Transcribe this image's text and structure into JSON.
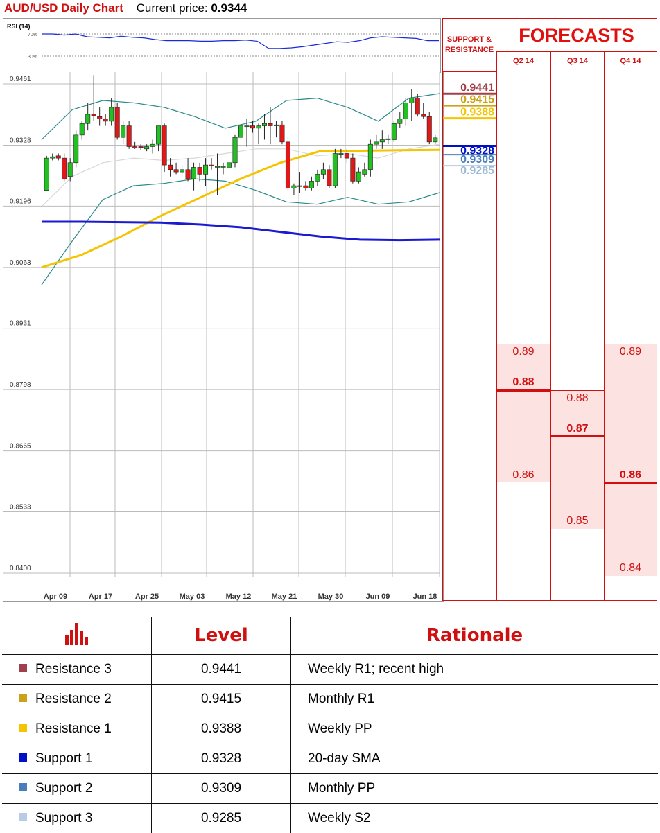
{
  "header": {
    "title": "AUD/USD Daily Chart",
    "price_label": "Current price:",
    "price_value": "0.9344"
  },
  "rsi_panel": {
    "label": "RSI (14)",
    "levels": [
      "70%",
      "30%"
    ]
  },
  "support_resistance_header": {
    "line1": "SUPPORT &",
    "line2": "RESISTANCE"
  },
  "forecasts": {
    "title": "FORECASTS",
    "quarters": [
      {
        "label": "Q2 14",
        "high": "0.89",
        "mid": "0.88",
        "low": "0.86"
      },
      {
        "label": "Q3 14",
        "high": "0.88",
        "mid": "0.87",
        "low": "0.85"
      },
      {
        "label": "Q4 14",
        "high": "0.89",
        "mid": "0.86",
        "low": "0.84"
      }
    ]
  },
  "chart_data": {
    "type": "candlestick",
    "title": "AUD/USD Daily Chart",
    "x_tick_labels": [
      "Apr 09",
      "Apr 17",
      "Apr 25",
      "May 03",
      "May 12",
      "May 21",
      "May 30",
      "Jun 09",
      "Jun 18"
    ],
    "y_tick_labels": [
      "0.9461",
      "0.9328",
      "0.9196",
      "0.9063",
      "0.8931",
      "0.8798",
      "0.8665",
      "0.8533",
      "0.8400"
    ],
    "ylim": [
      0.84,
      0.9461
    ],
    "grid": true,
    "overlays": [
      "Bollinger Bands",
      "yellow moving average",
      "blue moving average"
    ],
    "ohlc": [
      [
        0.923,
        0.9305,
        0.923,
        0.93
      ],
      [
        0.93,
        0.931,
        0.9295,
        0.9303
      ],
      [
        0.9305,
        0.931,
        0.9295,
        0.93
      ],
      [
        0.93,
        0.931,
        0.925,
        0.9255
      ],
      [
        0.926,
        0.93,
        0.925,
        0.929
      ],
      [
        0.929,
        0.936,
        0.928,
        0.935
      ],
      [
        0.935,
        0.938,
        0.934,
        0.9375
      ],
      [
        0.9375,
        0.942,
        0.936,
        0.9395
      ],
      [
        0.9395,
        0.948,
        0.938,
        0.9392
      ],
      [
        0.939,
        0.941,
        0.937,
        0.9385
      ],
      [
        0.9385,
        0.9395,
        0.937,
        0.938
      ],
      [
        0.938,
        0.943,
        0.937,
        0.941
      ],
      [
        0.941,
        0.942,
        0.934,
        0.9345
      ],
      [
        0.9345,
        0.938,
        0.933,
        0.937
      ],
      [
        0.937,
        0.938,
        0.932,
        0.9325
      ],
      [
        0.9325,
        0.9335,
        0.932,
        0.9322
      ],
      [
        0.9325,
        0.933,
        0.9318,
        0.9323
      ],
      [
        0.932,
        0.933,
        0.9315,
        0.9325
      ],
      [
        0.9325,
        0.934,
        0.931,
        0.933
      ],
      [
        0.933,
        0.937,
        0.9315,
        0.937
      ],
      [
        0.937,
        0.9375,
        0.927,
        0.9285
      ],
      [
        0.9285,
        0.93,
        0.926,
        0.9275
      ],
      [
        0.9275,
        0.929,
        0.9265,
        0.927
      ],
      [
        0.927,
        0.9285,
        0.926,
        0.9275
      ],
      [
        0.9275,
        0.93,
        0.925,
        0.9255
      ],
      [
        0.9255,
        0.929,
        0.923,
        0.928
      ],
      [
        0.928,
        0.929,
        0.925,
        0.9265
      ],
      [
        0.9265,
        0.93,
        0.924,
        0.9285
      ],
      [
        0.9285,
        0.93,
        0.9275,
        0.9283
      ],
      [
        0.928,
        0.931,
        0.922,
        0.9282
      ],
      [
        0.928,
        0.929,
        0.9265,
        0.9282
      ],
      [
        0.928,
        0.93,
        0.927,
        0.929
      ],
      [
        0.929,
        0.935,
        0.928,
        0.9345
      ],
      [
        0.9345,
        0.938,
        0.933,
        0.937
      ],
      [
        0.937,
        0.9385,
        0.9325,
        0.937
      ],
      [
        0.937,
        0.938,
        0.9355,
        0.9365
      ],
      [
        0.9365,
        0.9375,
        0.933,
        0.937
      ],
      [
        0.937,
        0.9395,
        0.934,
        0.9375
      ],
      [
        0.9375,
        0.941,
        0.933,
        0.937
      ],
      [
        0.937,
        0.938,
        0.9345,
        0.9372
      ],
      [
        0.9372,
        0.938,
        0.933,
        0.9335
      ],
      [
        0.9335,
        0.9345,
        0.923,
        0.9235
      ],
      [
        0.9235,
        0.9245,
        0.922,
        0.924
      ],
      [
        0.924,
        0.927,
        0.9225,
        0.924
      ],
      [
        0.924,
        0.925,
        0.923,
        0.9235
      ],
      [
        0.9235,
        0.926,
        0.923,
        0.925
      ],
      [
        0.925,
        0.9275,
        0.924,
        0.9265
      ],
      [
        0.9265,
        0.929,
        0.9255,
        0.9275
      ],
      [
        0.9275,
        0.9285,
        0.9235,
        0.924
      ],
      [
        0.924,
        0.932,
        0.9235,
        0.931
      ],
      [
        0.931,
        0.932,
        0.93,
        0.931
      ],
      [
        0.931,
        0.932,
        0.929,
        0.93
      ],
      [
        0.93,
        0.931,
        0.9245,
        0.925
      ],
      [
        0.925,
        0.928,
        0.9245,
        0.927
      ],
      [
        0.9265,
        0.929,
        0.926,
        0.9275
      ],
      [
        0.9275,
        0.934,
        0.926,
        0.933
      ],
      [
        0.933,
        0.935,
        0.932,
        0.9335
      ],
      [
        0.9335,
        0.936,
        0.932,
        0.934
      ],
      [
        0.934,
        0.935,
        0.933,
        0.9342
      ],
      [
        0.934,
        0.938,
        0.9335,
        0.9375
      ],
      [
        0.9375,
        0.94,
        0.9365,
        0.9385
      ],
      [
        0.9385,
        0.943,
        0.937,
        0.942
      ],
      [
        0.942,
        0.945,
        0.938,
        0.943
      ],
      [
        0.943,
        0.944,
        0.939,
        0.9395
      ],
      [
        0.9395,
        0.942,
        0.9385,
        0.939
      ],
      [
        0.939,
        0.94,
        0.933,
        0.9335
      ],
      [
        0.9335,
        0.935,
        0.933,
        0.9344
      ]
    ],
    "sma_blue": [
      0.9162,
      0.9162,
      0.9161,
      0.916,
      0.9156,
      0.915,
      0.914,
      0.913,
      0.9123,
      0.9122,
      0.9123
    ],
    "ma_yellow": [
      0.9063,
      0.909,
      0.913,
      0.9175,
      0.9215,
      0.9255,
      0.929,
      0.9315,
      0.9316,
      0.9317,
      0.9318
    ],
    "bb_upper": [
      0.934,
      0.9405,
      0.9425,
      0.942,
      0.941,
      0.939,
      0.9365,
      0.938,
      0.9425,
      0.943,
      0.941,
      0.938,
      0.943,
      0.944
    ],
    "bb_lower": [
      0.9025,
      0.912,
      0.921,
      0.924,
      0.9245,
      0.9255,
      0.925,
      0.923,
      0.9205,
      0.92,
      0.9215,
      0.92,
      0.9205,
      0.9225
    ],
    "bb_mid": [
      0.9195,
      0.926,
      0.929,
      0.93,
      0.9295,
      0.93,
      0.931,
      0.932,
      0.932,
      0.9305,
      0.931,
      0.93,
      0.932,
      0.933
    ],
    "rsi": [
      70,
      70,
      68,
      70,
      65,
      64,
      63,
      66,
      64,
      63,
      60,
      58,
      58,
      58,
      57,
      57,
      58,
      58,
      59,
      57,
      44,
      44,
      45,
      47,
      50,
      53,
      56,
      55,
      58,
      63,
      65,
      64,
      63,
      62,
      58,
      58
    ],
    "support_resistance": [
      {
        "name": "Resistance 3",
        "value": "0.9441",
        "rationale": "Weekly R1; recent high",
        "color": "#a0404a"
      },
      {
        "name": "Resistance 2",
        "value": "0.9415",
        "rationale": "Monthly R1",
        "color": "#c9a21a"
      },
      {
        "name": "Resistance 1",
        "value": "0.9388",
        "rationale": "Weekly PP",
        "color": "#f5c400"
      },
      {
        "name": "Support 1",
        "value": "0.9328",
        "rationale": "20-day SMA",
        "color": "#0010c8"
      },
      {
        "name": "Support 2",
        "value": "0.9309",
        "rationale": "Monthly PP",
        "color": "#4a7ebb"
      },
      {
        "name": "Support 3",
        "value": "0.9285",
        "rationale": "Weekly S2",
        "color": "#b8cce4"
      }
    ]
  },
  "levels_table": {
    "col_level": "Level",
    "col_rationale": "Rationale"
  }
}
